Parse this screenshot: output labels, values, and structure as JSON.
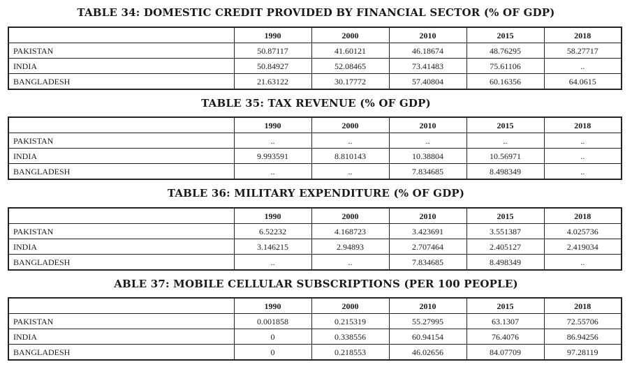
{
  "years": [
    "1990",
    "2000",
    "2010",
    "2015",
    "2018"
  ],
  "tables": [
    {
      "title": "TABLE 34: DOMESTIC CREDIT PROVIDED BY FINANCIAL SECTOR (% OF GDP)",
      "rows": [
        {
          "country": "PAKISTAN",
          "values": [
            "50.87117",
            "41.60121",
            "46.18674",
            "48.76295",
            "58.27717"
          ]
        },
        {
          "country": "INDIA",
          "values": [
            "50.84927",
            "52.08465",
            "73.41483",
            "75.61106",
            ".."
          ]
        },
        {
          "country": "BANGLADESH",
          "values": [
            "21.63122",
            "30.17772",
            "57.40804",
            "60.16356",
            "64.0615"
          ]
        }
      ]
    },
    {
      "title": "TABLE 35: TAX REVENUE (% OF GDP)",
      "rows": [
        {
          "country": "PAKISTAN",
          "values": [
            "..",
            "..",
            "..",
            "..",
            ".."
          ]
        },
        {
          "country": "INDIA",
          "values": [
            "9.993591",
            "8.810143",
            "10.38804",
            "10.56971",
            ".."
          ]
        },
        {
          "country": "BANGLADESH",
          "values": [
            "..",
            "..",
            "7.834685",
            "8.498349",
            ".."
          ]
        }
      ]
    },
    {
      "title": "TABLE 36: MILITARY EXPENDITURE (% OF GDP)",
      "rows": [
        {
          "country": "PAKISTAN",
          "values": [
            "6.52232",
            "4.168723",
            "3.423691",
            "3.551387",
            "4.025736"
          ]
        },
        {
          "country": "INDIA",
          "values": [
            "3.146215",
            "2.94893",
            "2.707464",
            "2.405127",
            "2.419034"
          ]
        },
        {
          "country": "BANGLADESH",
          "values": [
            "..",
            "..",
            "7.834685",
            "8.498349",
            ".."
          ]
        }
      ]
    },
    {
      "title": "ABLE 37: MOBILE CELLULAR SUBSCRIPTIONS (PER 100 PEOPLE)",
      "rows": [
        {
          "country": "PAKISTAN",
          "values": [
            "0.001858",
            "0.215319",
            "55.27995",
            "63.1307",
            "72.55706"
          ]
        },
        {
          "country": "INDIA",
          "values": [
            "0",
            "0.338556",
            "60.94154",
            "76.4076",
            "86.94256"
          ]
        },
        {
          "country": "BANGLADESH",
          "values": [
            "0",
            "0.218553",
            "46.02656",
            "84.07709",
            "97.28119"
          ]
        }
      ]
    }
  ]
}
